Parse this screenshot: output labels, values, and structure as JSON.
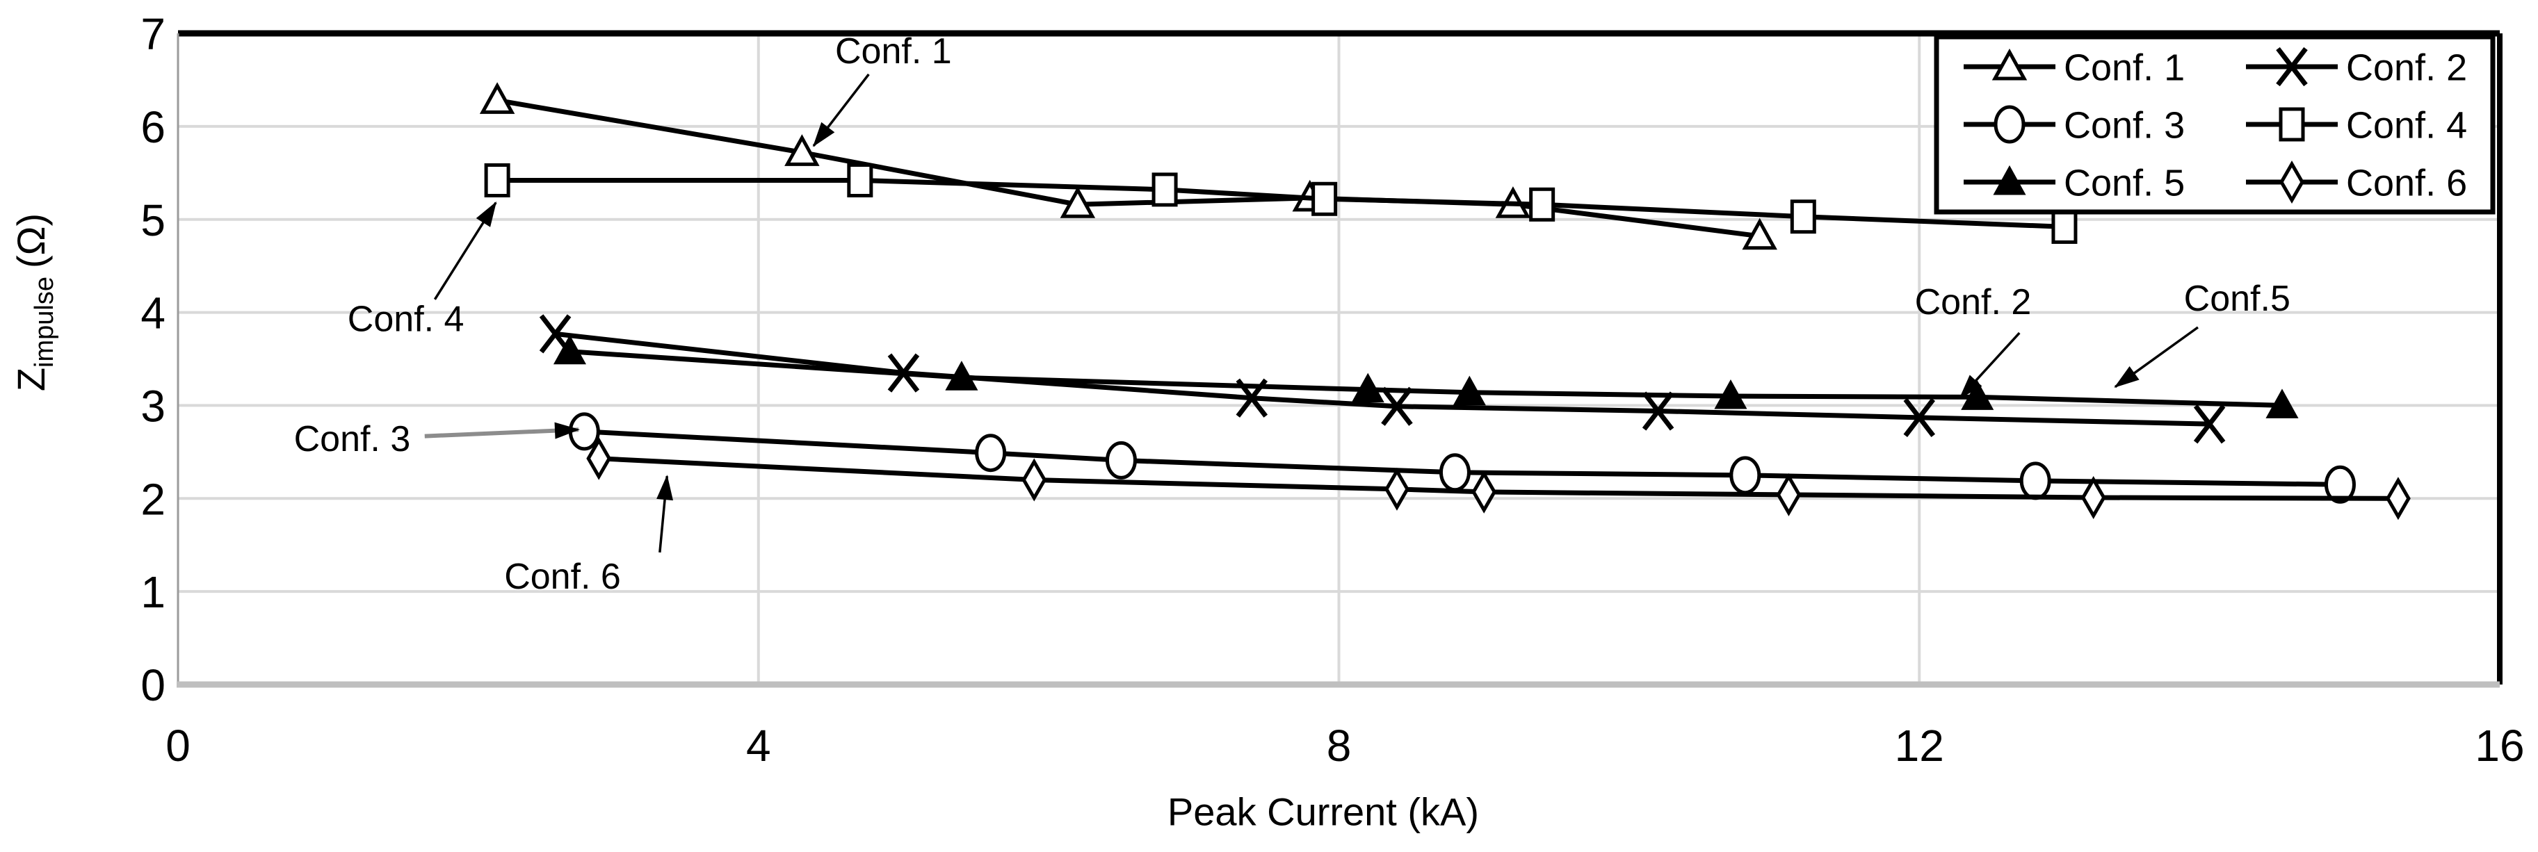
{
  "chart_data": {
    "type": "line",
    "title": "",
    "xlabel": "Peak Current (kA)",
    "ylabel_main": "Z",
    "ylabel_sub": "impulse",
    "ylabel_unit": "(Ω)",
    "xlim": [
      0,
      16
    ],
    "ylim": [
      0,
      7
    ],
    "x_ticks": [
      0,
      4,
      8,
      12,
      16
    ],
    "y_ticks": [
      0,
      1,
      2,
      3,
      4,
      5,
      6,
      7
    ],
    "grid": true,
    "legend_position": "top-right",
    "legend_columns": 2,
    "colors": {
      "series": "#000000",
      "grid": "#d9d9d9",
      "axis_line": "#bfbfbf",
      "left_axis_line": "#9b9b9b",
      "plot_border": "#000000",
      "background": "#ffffff",
      "text": "#000000"
    },
    "series": [
      {
        "name": "Conf. 1",
        "marker": "triangle-open",
        "points": [
          [
            2.2,
            6.28
          ],
          [
            4.3,
            5.72
          ],
          [
            6.2,
            5.16
          ],
          [
            7.8,
            5.23
          ],
          [
            9.2,
            5.16
          ],
          [
            10.9,
            4.82
          ]
        ]
      },
      {
        "name": "Conf. 2",
        "marker": "x-cross",
        "points": [
          [
            2.6,
            3.77
          ],
          [
            5.0,
            3.35
          ],
          [
            7.4,
            3.08
          ],
          [
            8.4,
            2.99
          ],
          [
            10.2,
            2.94
          ],
          [
            12.0,
            2.87
          ],
          [
            14.0,
            2.8
          ]
        ]
      },
      {
        "name": "Conf. 3",
        "marker": "circle-open",
        "points": [
          [
            2.8,
            2.72
          ],
          [
            5.6,
            2.49
          ],
          [
            6.5,
            2.41
          ],
          [
            8.8,
            2.28
          ],
          [
            10.8,
            2.25
          ],
          [
            12.8,
            2.19
          ],
          [
            14.9,
            2.15
          ]
        ]
      },
      {
        "name": "Conf. 4",
        "marker": "square-open",
        "points": [
          [
            2.2,
            5.42
          ],
          [
            4.7,
            5.42
          ],
          [
            6.8,
            5.32
          ],
          [
            7.9,
            5.22
          ],
          [
            9.4,
            5.16
          ],
          [
            11.2,
            5.03
          ],
          [
            13.0,
            4.92
          ]
        ]
      },
      {
        "name": "Conf. 5",
        "marker": "triangle-filled",
        "points": [
          [
            2.7,
            3.58
          ],
          [
            5.4,
            3.3
          ],
          [
            8.2,
            3.17
          ],
          [
            8.9,
            3.14
          ],
          [
            10.7,
            3.1
          ],
          [
            12.4,
            3.09
          ],
          [
            14.5,
            3.0
          ]
        ]
      },
      {
        "name": "Conf. 6",
        "marker": "diamond-open",
        "points": [
          [
            2.9,
            2.43
          ],
          [
            5.9,
            2.2
          ],
          [
            8.4,
            2.1
          ],
          [
            9.0,
            2.07
          ],
          [
            11.1,
            2.04
          ],
          [
            13.2,
            2.01
          ],
          [
            15.3,
            2.0
          ]
        ]
      }
    ],
    "legend_items": [
      {
        "label": "Conf. 1",
        "marker": "triangle-open"
      },
      {
        "label": "Conf. 2",
        "marker": "x-cross"
      },
      {
        "label": "Conf. 3",
        "marker": "circle-open"
      },
      {
        "label": "Conf. 4",
        "marker": "square-open"
      },
      {
        "label": "Conf. 5",
        "marker": "triangle-filled"
      },
      {
        "label": "Conf. 6",
        "marker": "diamond-open"
      }
    ],
    "annotations": [
      {
        "text": "Conf. 1",
        "text_at": [
          4.93,
          6.82
        ],
        "arrow": [
          [
            4.76,
            6.56
          ],
          [
            4.38,
            5.79
          ]
        ]
      },
      {
        "text": "Conf. 4",
        "text_at": [
          1.57,
          3.94
        ],
        "arrow": [
          [
            1.77,
            4.14
          ],
          [
            2.19,
            5.18
          ]
        ]
      },
      {
        "text": "Conf. 3",
        "text_at": [
          1.2,
          2.65
        ],
        "arrow": [
          [
            1.7,
            2.67
          ],
          [
            2.76,
            2.74
          ]
        ],
        "arrow_color": "#8c8c8c",
        "arrow_width": 6
      },
      {
        "text": "Conf. 6",
        "text_at": [
          2.65,
          1.17
        ],
        "arrow": [
          [
            3.32,
            1.42
          ],
          [
            3.37,
            2.24
          ]
        ]
      },
      {
        "text": "Conf. 2",
        "text_at": [
          12.37,
          4.12
        ],
        "arrow": [
          [
            12.69,
            3.78
          ],
          [
            12.28,
            3.08
          ]
        ]
      },
      {
        "text": "Conf.5",
        "text_at": [
          14.19,
          4.16
        ],
        "arrow": [
          [
            13.92,
            3.84
          ],
          [
            13.35,
            3.2
          ]
        ]
      }
    ]
  }
}
